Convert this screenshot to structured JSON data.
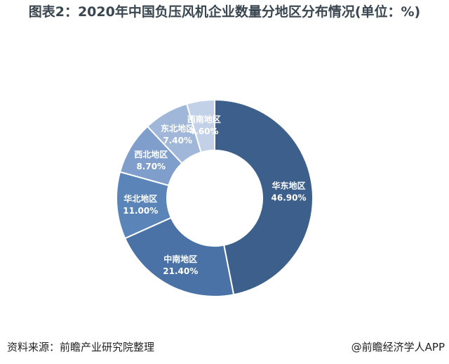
{
  "title": "图表2：2020年中国负压风机企业数量分地区分布情况(单位：%)",
  "source": "资料来源：前瞻产业研究院整理",
  "brand": "@前瞻经济学人APP",
  "chart_data": {
    "type": "pie",
    "donut": true,
    "categories": [
      "华东地区",
      "中南地区",
      "华北地区",
      "西北地区",
      "东北地区",
      "西南地区"
    ],
    "values": [
      46.9,
      21.4,
      11.0,
      8.7,
      7.4,
      4.6
    ],
    "value_labels": [
      "46.90%",
      "21.40%",
      "11.00%",
      "8.70%",
      "7.40%",
      "4.60%"
    ],
    "colors": [
      "#3d5f8c",
      "#4a72a6",
      "#5b84b8",
      "#7f9ecb",
      "#a1b7d9",
      "#c3d1e8"
    ],
    "legend": "none"
  }
}
